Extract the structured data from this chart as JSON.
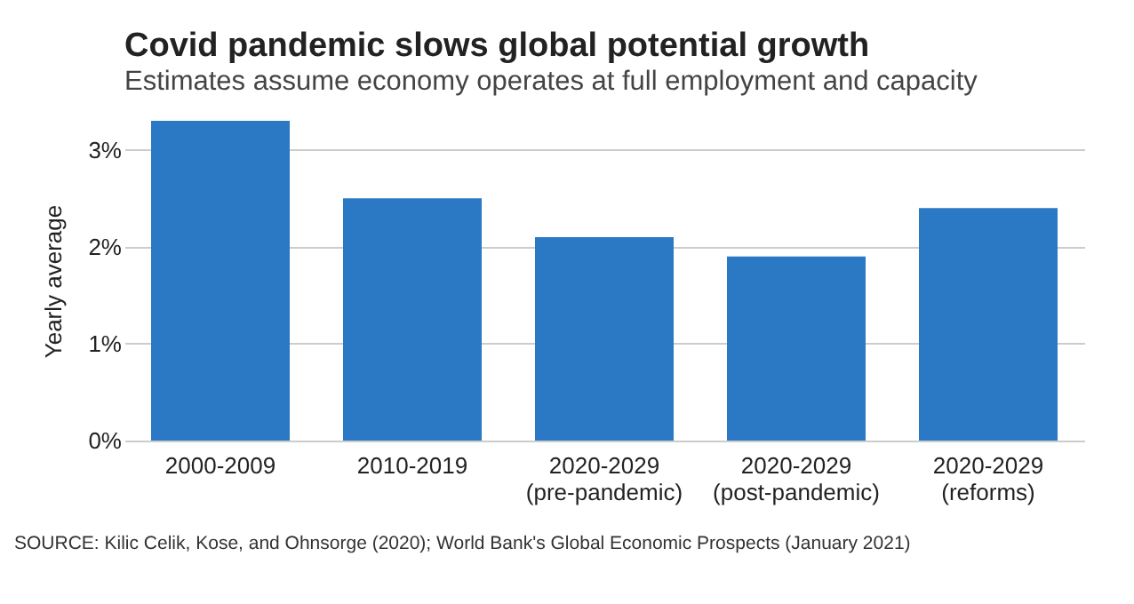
{
  "chart_data": {
    "type": "bar",
    "title": "Covid pandemic slows global potential growth",
    "subtitle": "Estimates assume economy operates at full employment and capacity",
    "ylabel": "Yearly average",
    "categories": [
      "2000-2009",
      "2010-2019",
      "2020-2029\n(pre-pandemic)",
      "2020-2029\n(post-pandemic)",
      "2020-2029\n(reforms)"
    ],
    "values": [
      3.3,
      2.5,
      2.1,
      1.9,
      2.4
    ],
    "color": "#2b78c4",
    "yticks": [
      {
        "value": 0,
        "label": "0%"
      },
      {
        "value": 1,
        "label": "1%"
      },
      {
        "value": 2,
        "label": "2%"
      },
      {
        "value": 3,
        "label": "3%"
      }
    ],
    "ylim": [
      0,
      3.3
    ],
    "grid": "y",
    "annotations": [
      "SOURCE: Kilic Celik, Kose, and Ohnsorge (2020); World Bank's Global Economic Prospects (January 2021)"
    ]
  }
}
